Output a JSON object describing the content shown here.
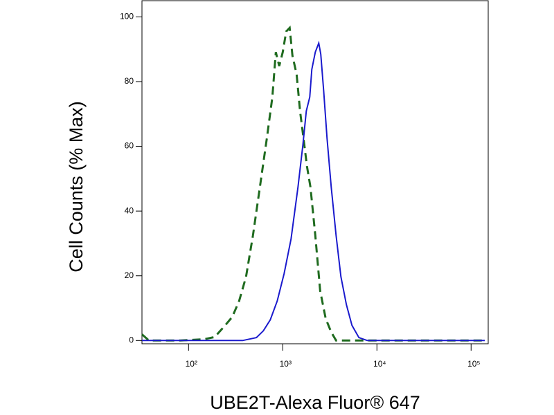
{
  "chart_data": {
    "type": "line",
    "x_label": "UBE2T-Alexa Fluor® 647",
    "y_label": "Cell Counts (% Max)",
    "xscale": "log",
    "xlim": [
      32,
      152000
    ],
    "ylim": [
      -1,
      105
    ],
    "xticks": [
      {
        "value": 100,
        "label": "10²"
      },
      {
        "value": 1000,
        "label": "10³"
      },
      {
        "value": 10000,
        "label": "10⁴"
      },
      {
        "value": 100000,
        "label": "10⁵"
      }
    ],
    "yticks": [
      0,
      20,
      40,
      60,
      80,
      100
    ],
    "series": [
      {
        "color": "#1f6b1f",
        "dashed": true,
        "x": [
          32,
          38,
          82,
          147,
          190,
          245,
          291,
          344,
          408,
          483,
          572,
          678,
          776,
          844,
          918,
          1000,
          1089,
          1185,
          1268,
          1403,
          1528,
          1663,
          1809,
          1968,
          2217,
          2497,
          2857,
          3272,
          3684,
          4365,
          140000
        ],
        "values": [
          1.9,
          0,
          0,
          0.4,
          1.1,
          4.7,
          7.3,
          12.2,
          19.7,
          32.5,
          47.4,
          62.4,
          75.2,
          89.1,
          84.8,
          89.1,
          95.5,
          96.6,
          88,
          82.3,
          70.9,
          62.4,
          53.8,
          47.4,
          32.5,
          15.4,
          6.8,
          2.6,
          0,
          0,
          0
        ]
      },
      {
        "color": "#1a1acd",
        "dashed": false,
        "x": [
          32,
          267,
          375,
          526,
          623,
          738,
          873,
          1035,
          1225,
          1452,
          1634,
          1778,
          1936,
          2036,
          2217,
          2411,
          2535,
          2715,
          2958,
          3272,
          3684,
          4150,
          4745,
          5433,
          6442,
          7886,
          140000
        ],
        "values": [
          0,
          0,
          0,
          0.9,
          3,
          6.4,
          12.2,
          20.7,
          31.4,
          47.4,
          60.3,
          70.9,
          75.2,
          83.8,
          89.1,
          91.9,
          88.5,
          77.4,
          62.4,
          47.4,
          32.5,
          19.7,
          11.1,
          4.7,
          0.9,
          0,
          0
        ]
      }
    ]
  }
}
